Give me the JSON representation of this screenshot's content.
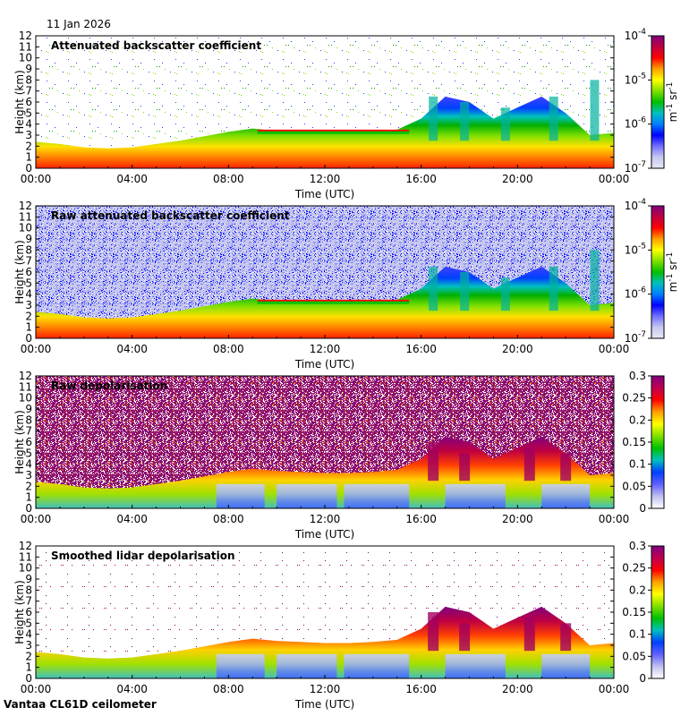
{
  "date": "11 Jan 2026",
  "footer": "Vantaa CL61D ceilometer",
  "chart_data": [
    {
      "type": "heatmap",
      "title": "Attenuated backscatter coefficient",
      "xlabel": "Time (UTC)",
      "ylabel": "Height (km)",
      "x_ticks": [
        "00:00",
        "04:00",
        "08:00",
        "12:00",
        "16:00",
        "20:00",
        "00:00"
      ],
      "y_ticks": [
        "0",
        "1",
        "2",
        "3",
        "4",
        "5",
        "6",
        "7",
        "8",
        "9",
        "10",
        "11",
        "12"
      ],
      "ylim": [
        0,
        12
      ],
      "xlim_hours": [
        0,
        24
      ],
      "colorbar": {
        "scale": "log",
        "ticks": [
          "10",
          "10",
          "10",
          "10"
        ],
        "exponents": [
          "-7",
          "-6",
          "-5",
          "-4"
        ],
        "tick_values": [
          1e-07,
          1e-06,
          1e-05,
          0.0001
        ],
        "unit_base": "m",
        "unit_exp1": "-1",
        "unit_mid": " sr",
        "unit_exp2": "-1"
      },
      "style": "clean",
      "background": "white"
    },
    {
      "type": "heatmap",
      "title": "Raw attenuated backscatter coefficient",
      "xlabel": "Time (UTC)",
      "ylabel": "Height (km)",
      "x_ticks": [
        "00:00",
        "04:00",
        "08:00",
        "12:00",
        "16:00",
        "20:00",
        "00:00"
      ],
      "y_ticks": [
        "0",
        "1",
        "2",
        "3",
        "4",
        "5",
        "6",
        "7",
        "8",
        "9",
        "10",
        "11",
        "12"
      ],
      "ylim": [
        0,
        12
      ],
      "xlim_hours": [
        0,
        24
      ],
      "colorbar": {
        "scale": "log",
        "ticks": [
          "10",
          "10",
          "10",
          "10"
        ],
        "exponents": [
          "-7",
          "-6",
          "-5",
          "-4"
        ],
        "tick_values": [
          1e-07,
          1e-06,
          1e-05,
          0.0001
        ],
        "unit_base": "m",
        "unit_exp1": "-1",
        "unit_mid": " sr",
        "unit_exp2": "-1"
      },
      "style": "noisy",
      "background": "bluenoise"
    },
    {
      "type": "heatmap",
      "title": "Raw depolarisation",
      "xlabel": "Time (UTC)",
      "ylabel": "Height (km)",
      "x_ticks": [
        "00:00",
        "04:00",
        "08:00",
        "12:00",
        "16:00",
        "20:00",
        "00:00"
      ],
      "y_ticks": [
        "0",
        "1",
        "2",
        "3",
        "4",
        "5",
        "6",
        "7",
        "8",
        "9",
        "10",
        "11",
        "12"
      ],
      "ylim": [
        0,
        12
      ],
      "xlim_hours": [
        0,
        24
      ],
      "colorbar": {
        "scale": "linear",
        "ticks": [
          "0",
          "0.05",
          "0.1",
          "0.15",
          "0.2",
          "0.25",
          "0.3"
        ],
        "tick_values": [
          0,
          0.05,
          0.1,
          0.15,
          0.2,
          0.25,
          0.3
        ]
      },
      "style": "depol",
      "background": "purplenoise"
    },
    {
      "type": "heatmap",
      "title": "Smoothed lidar depolarisation",
      "xlabel": "Time (UTC)",
      "ylabel": "Height (km)",
      "x_ticks": [
        "00:00",
        "04:00",
        "08:00",
        "12:00",
        "16:00",
        "20:00",
        "00:00"
      ],
      "y_ticks": [
        "0",
        "1",
        "2",
        "3",
        "4",
        "5",
        "6",
        "7",
        "8",
        "9",
        "10",
        "11",
        "12"
      ],
      "ylim": [
        0,
        12
      ],
      "xlim_hours": [
        0,
        24
      ],
      "colorbar": {
        "scale": "linear",
        "ticks": [
          "0",
          "0.05",
          "0.1",
          "0.15",
          "0.2",
          "0.25",
          "0.3"
        ],
        "tick_values": [
          0,
          0.05,
          0.1,
          0.15,
          0.2,
          0.25,
          0.3
        ]
      },
      "style": "depol-clean",
      "background": "white"
    }
  ]
}
